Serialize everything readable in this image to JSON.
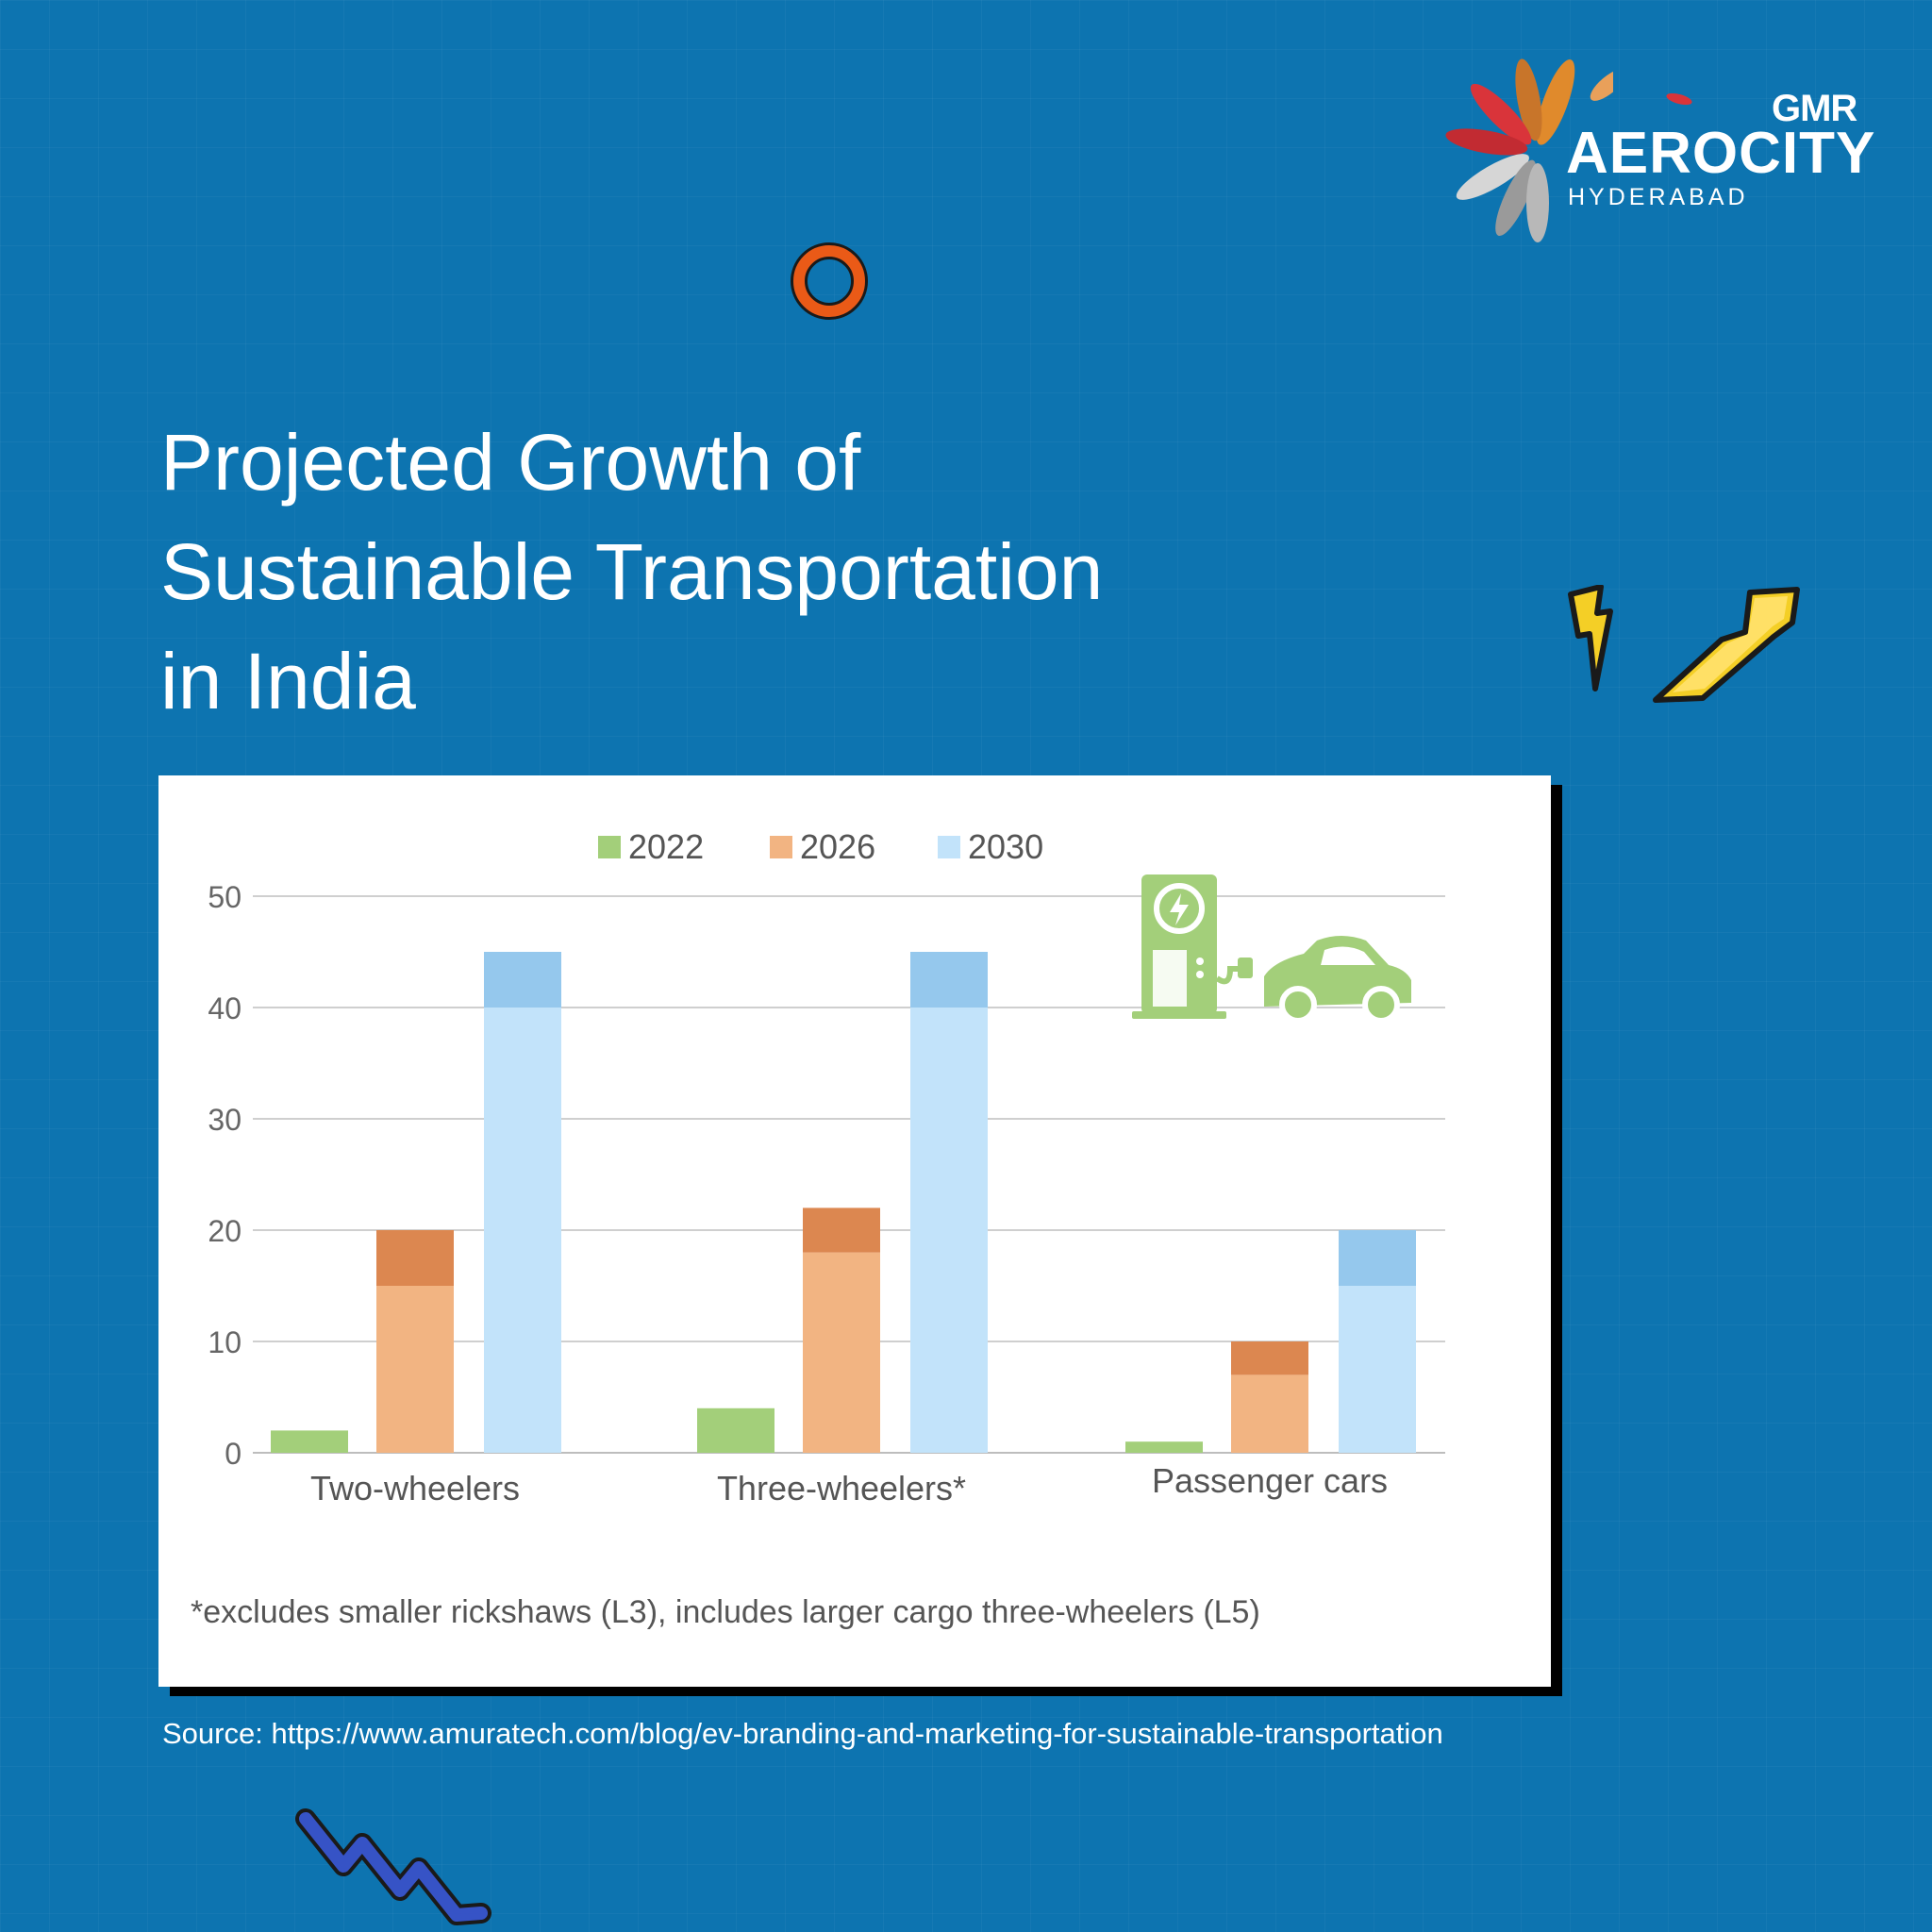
{
  "brand": {
    "gmr": "GMR",
    "name": "AEROCITY",
    "city": "HYDERABAD"
  },
  "title_lines": [
    "Projected Growth of",
    "Sustainable Transportation",
    "in India"
  ],
  "colors": {
    "background": "#0d74b0",
    "series_2022": "#a3cf7a",
    "series_2026": "#f2b482",
    "series_2030": "#c2e3fa",
    "accent_orange": "#ea5a17",
    "bolt_yellow": "#f4cf26",
    "squiggle_blue": "#3653c6"
  },
  "chart_data": {
    "type": "bar",
    "categories": [
      "Two-wheelers",
      "Three-wheelers*",
      "Passenger cars"
    ],
    "series": [
      {
        "name": "2022",
        "values": [
          2,
          4,
          1
        ],
        "color": "#a3cf7a"
      },
      {
        "name": "2026",
        "low": [
          15,
          18,
          7
        ],
        "values": [
          20,
          22,
          10
        ],
        "color": "#f2b482",
        "range_color": "#dc8750"
      },
      {
        "name": "2030",
        "low": [
          40,
          40,
          15
        ],
        "values": [
          45,
          45,
          20
        ],
        "color": "#c2e3fa",
        "range_color": "#95c8ed"
      }
    ],
    "y_ticks": [
      "0",
      "10",
      "20",
      "30",
      "40",
      "50"
    ],
    "ylim": [
      0,
      50
    ],
    "grid": true,
    "legend_position": "top-center",
    "footnote": "*excludes smaller rickshaws (L3), includes larger cargo three-wheelers (L5)",
    "illustration": "ev-charging-car-icon"
  },
  "source": "Source: https://www.amuratech.com/blog/ev-branding-and-marketing-for-sustainable-transportation"
}
